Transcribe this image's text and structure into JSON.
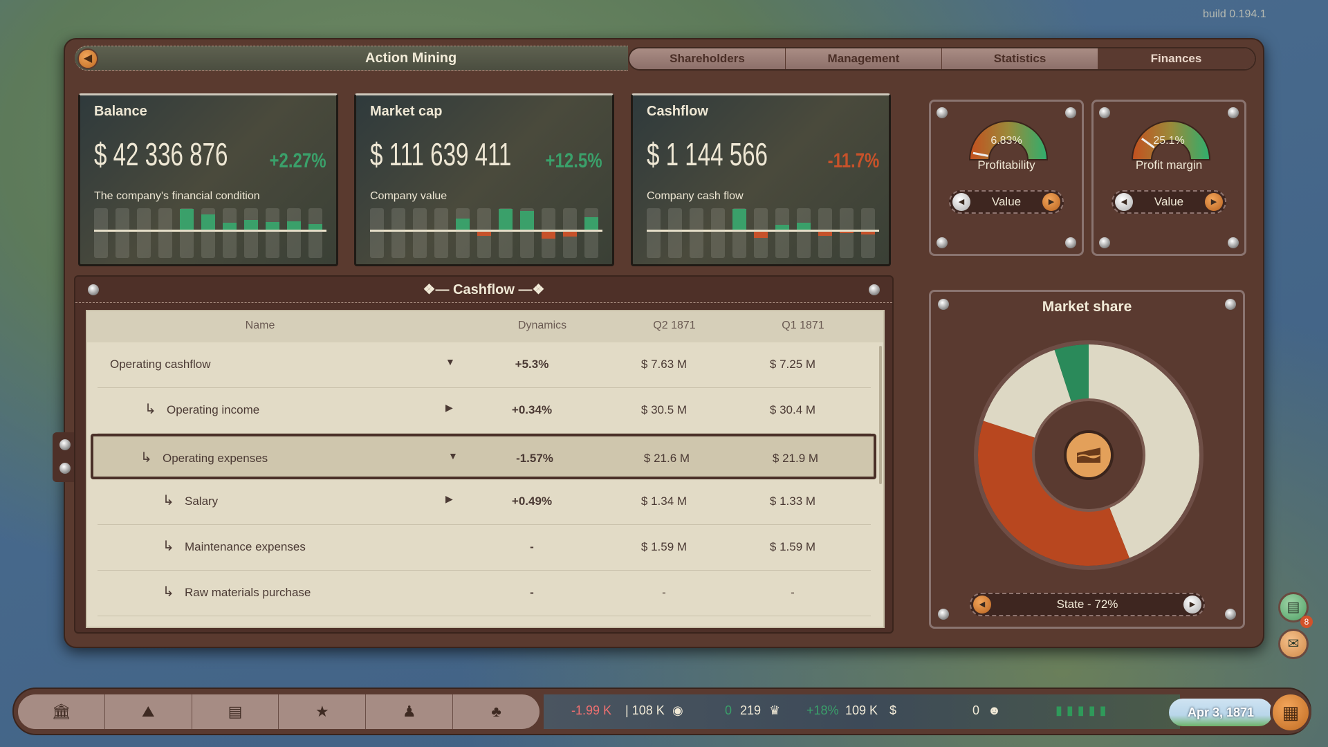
{
  "build": "build 0.194.1",
  "window": {
    "title": "Action Mining",
    "back_icon": "arrow-left-icon"
  },
  "tabs": [
    {
      "label": "Shareholders",
      "active": false
    },
    {
      "label": "Management",
      "active": false
    },
    {
      "label": "Statistics",
      "active": false
    },
    {
      "label": "Finances",
      "active": true
    }
  ],
  "cards": [
    {
      "label": "Balance",
      "value": "$ 42 336 876",
      "change": "+2.27%",
      "trend": "positive",
      "subtitle": "The company's financial condition",
      "bars": [
        0,
        0,
        0,
        0,
        1.0,
        0.75,
        0.32,
        0.47,
        0.37,
        0.41,
        0.28
      ]
    },
    {
      "label": "Market cap",
      "value": "$ 111 639 411",
      "change": "+12.5%",
      "trend": "positive",
      "subtitle": "Company value",
      "bars": [
        0,
        0,
        0,
        0,
        0.55,
        -0.2,
        1.0,
        0.9,
        -0.32,
        -0.22,
        0.6
      ]
    },
    {
      "label": "Cashflow",
      "value": "$ 1 144 566",
      "change": "-11.7%",
      "trend": "negative",
      "subtitle": "Company cash flow",
      "bars": [
        0,
        0,
        0,
        0,
        1.0,
        -0.3,
        0.25,
        0.35,
        -0.2,
        -0.05,
        -0.13
      ]
    }
  ],
  "gauges": [
    {
      "value": "6.83%",
      "name": "Profitability",
      "needle_level": 0.06,
      "selector": "Value"
    },
    {
      "value": "25.1%",
      "name": "Profit margin",
      "needle_level": 0.2,
      "selector": "Value"
    }
  ],
  "market_share": {
    "title": "Market share",
    "selector": "State - 72%",
    "center_icon": "cake-icon",
    "segments": [
      {
        "share": 44,
        "color": "#ddd8c4"
      },
      {
        "share": 36,
        "color": "#b8471f"
      },
      {
        "share": 15,
        "color": "#ddd8c4"
      },
      {
        "share": 5,
        "color": "#2a8a5a"
      }
    ]
  },
  "cashflow": {
    "title": "Cashflow",
    "columns": [
      "Name",
      "Dynamics",
      "Q2 1871",
      "Q1 1871"
    ],
    "rows": [
      {
        "name": "Operating cashflow",
        "level": 0,
        "toggle": "expanded",
        "dynamics": "+5.3%",
        "trend": "positive",
        "q2": "$ 7.63 M",
        "q1": "$ 7.25 M"
      },
      {
        "name": "Operating income",
        "level": 1,
        "toggle": "collapsed",
        "dynamics": "+0.34%",
        "trend": "positive",
        "q2": "$ 30.5 M",
        "q1": "$ 30.4 M"
      },
      {
        "name": "Operating expenses",
        "level": 1,
        "toggle": "expanded",
        "dynamics": "-1.57%",
        "trend": "positive",
        "q2": "$ 21.6 M",
        "q1": "$ 21.9 M",
        "selected": true
      },
      {
        "name": "Salary",
        "level": 2,
        "toggle": "collapsed",
        "dynamics": "+0.49%",
        "trend": "negative",
        "q2": "$ 1.34 M",
        "q1": "$ 1.33 M"
      },
      {
        "name": "Maintenance expenses",
        "level": 2,
        "toggle": "",
        "dynamics": "-",
        "trend": "neutral",
        "q2": "$ 1.59 M",
        "q1": "$ 1.59 M"
      },
      {
        "name": "Raw materials purchase",
        "level": 2,
        "toggle": "",
        "dynamics": "-",
        "trend": "neutral",
        "q2": "-",
        "q1": "-"
      }
    ]
  },
  "bottom_bar": {
    "buttons": [
      "bank-icon",
      "map-icon",
      "parliament-icon",
      "trophy-icon",
      "spy-icon",
      "tree-icon"
    ],
    "income": "-1.99 K",
    "money": "| 108 K",
    "crown_delta": "0",
    "crown_value": "219",
    "dollar_change": "+18%",
    "dollar_value": "109 K",
    "head_value": "0",
    "hats_count": 5,
    "date": "Apr 3, 1871"
  },
  "side_buttons": {
    "news_badge": "8"
  },
  "colors": {
    "positive": "#3aa06a",
    "negative": "#c7522a",
    "leather": "#5a3a30",
    "accent": "#e08a3a"
  }
}
